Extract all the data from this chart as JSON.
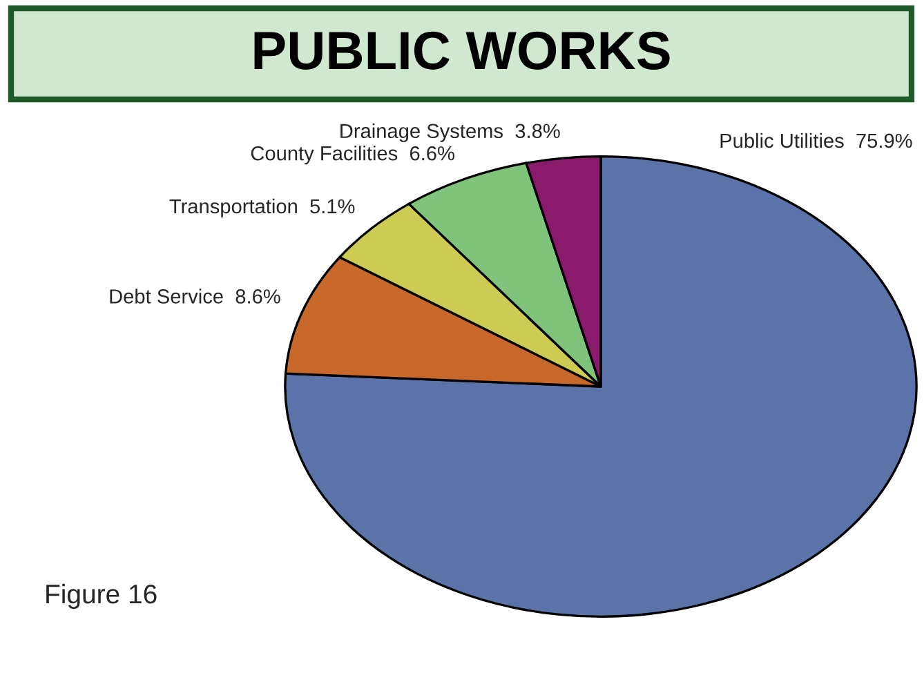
{
  "chart_data": {
    "type": "pie",
    "title": "PUBLIC WORKS",
    "categories": [
      "Public Utilities",
      "Debt Service",
      "Transportation",
      "County Facilities",
      "Drainage Systems"
    ],
    "values": [
      75.9,
      8.6,
      5.1,
      6.6,
      3.8
    ],
    "value_labels": [
      "75.9%",
      "8.6%",
      "5.1%",
      "6.6%",
      "3.8%"
    ],
    "colors": [
      "#5b73a8",
      "#c8682a",
      "#cccc55",
      "#80c47c",
      "#8a1a6a"
    ],
    "annotations": [
      "Figure 16"
    ]
  }
}
